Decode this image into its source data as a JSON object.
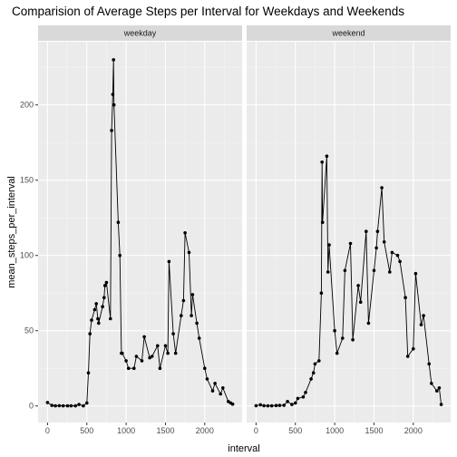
{
  "chart_data": {
    "type": "line",
    "title": "Comparision of Average Steps per Interval for Weekdays and Weekends",
    "xlabel": "interval",
    "ylabel": "mean_steps_per_interval",
    "xlim": [
      -120,
      2475
    ],
    "ylim": [
      -11,
      242
    ],
    "xticks": [
      0,
      500,
      1000,
      1500,
      2000
    ],
    "yticks": [
      0,
      50,
      100,
      150,
      200
    ],
    "grid": true,
    "facets": [
      "weekday",
      "weekend"
    ],
    "colors": {
      "panel": "#ebebeb",
      "grid_major": "#ffffff",
      "grid_minor": "#f5f5f5",
      "strip": "#d9d9d9",
      "line": "#000000",
      "tick": "#333333"
    },
    "series": [
      {
        "name": "weekday",
        "x": [
          0,
          55,
          100,
          150,
          200,
          255,
          300,
          355,
          400,
          455,
          500,
          520,
          540,
          560,
          600,
          620,
          640,
          650,
          700,
          720,
          730,
          750,
          800,
          815,
          830,
          840,
          845,
          900,
          920,
          940,
          950,
          1000,
          1030,
          1100,
          1130,
          1200,
          1230,
          1300,
          1330,
          1400,
          1430,
          1500,
          1530,
          1545,
          1600,
          1630,
          1700,
          1730,
          1750,
          1800,
          1830,
          1845,
          1900,
          1930,
          2000,
          2030,
          2100,
          2130,
          2200,
          2230,
          2300,
          2330,
          2355
        ],
        "y": [
          2.3,
          0.4,
          0.1,
          0.2,
          0.1,
          0.1,
          0.1,
          0.1,
          1,
          0.1,
          2,
          22,
          48,
          57,
          64,
          68,
          58,
          55,
          66,
          72,
          80,
          82,
          58,
          183,
          207,
          230,
          200,
          122,
          100,
          35,
          35,
          30,
          25,
          25,
          33,
          30,
          46,
          32,
          33,
          40,
          25,
          40,
          35,
          96,
          48,
          35,
          60,
          70,
          115,
          102,
          60,
          74,
          55,
          45,
          25,
          18,
          10,
          15,
          8,
          12,
          3,
          2,
          1.2
        ]
      },
      {
        "name": "weekend",
        "x": [
          0,
          55,
          100,
          150,
          200,
          255,
          300,
          355,
          400,
          455,
          500,
          530,
          600,
          630,
          700,
          730,
          750,
          800,
          830,
          840,
          845,
          900,
          915,
          930,
          1000,
          1030,
          1100,
          1130,
          1200,
          1230,
          1300,
          1330,
          1400,
          1430,
          1500,
          1530,
          1545,
          1600,
          1630,
          1700,
          1730,
          1800,
          1830,
          1900,
          1930,
          2000,
          2030,
          2100,
          2130,
          2200,
          2230,
          2300,
          2330,
          2355
        ],
        "y": [
          0.2,
          0.8,
          0.2,
          0.1,
          0.1,
          0.3,
          0.4,
          0.5,
          3,
          1,
          2,
          5,
          6,
          9,
          18,
          22,
          28,
          30,
          75,
          162,
          122,
          166,
          89,
          107,
          50,
          35,
          45,
          90,
          108,
          44,
          80,
          69,
          116,
          55,
          90,
          105,
          116,
          145,
          109,
          89,
          102,
          100,
          96,
          72,
          33,
          38,
          88,
          54,
          60,
          28,
          15,
          10,
          12,
          1
        ]
      }
    ]
  }
}
